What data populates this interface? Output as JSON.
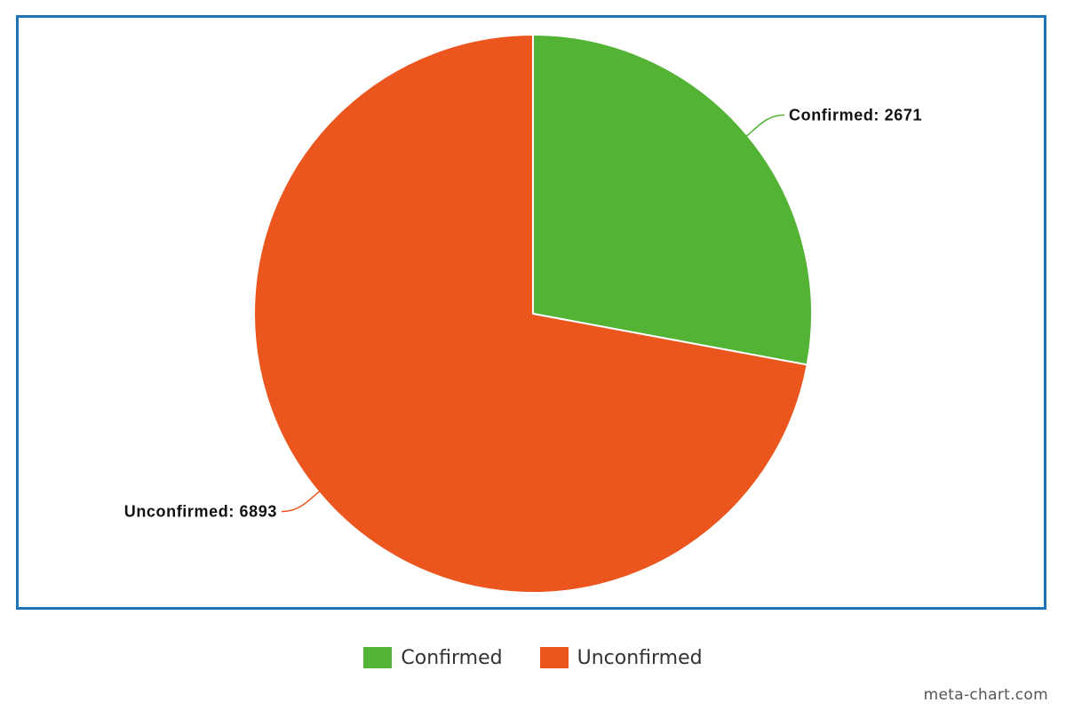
{
  "chart_data": {
    "type": "pie",
    "title": "",
    "slices": [
      {
        "name": "Confirmed",
        "value": 2671,
        "label": "Confirmed: 2671",
        "color": "#52b335"
      },
      {
        "name": "Unconfirmed",
        "value": 6893,
        "label": "Unconfirmed: 6893",
        "color": "#eb561e"
      }
    ],
    "start_direction": "top, clockwise",
    "legend_position": "bottom-center",
    "frame_color": "#1f73b7"
  },
  "legend": {
    "items": [
      {
        "label": "Confirmed",
        "color": "#52b335"
      },
      {
        "label": "Unconfirmed",
        "color": "#eb561e"
      }
    ]
  },
  "watermark": "meta-chart.com"
}
